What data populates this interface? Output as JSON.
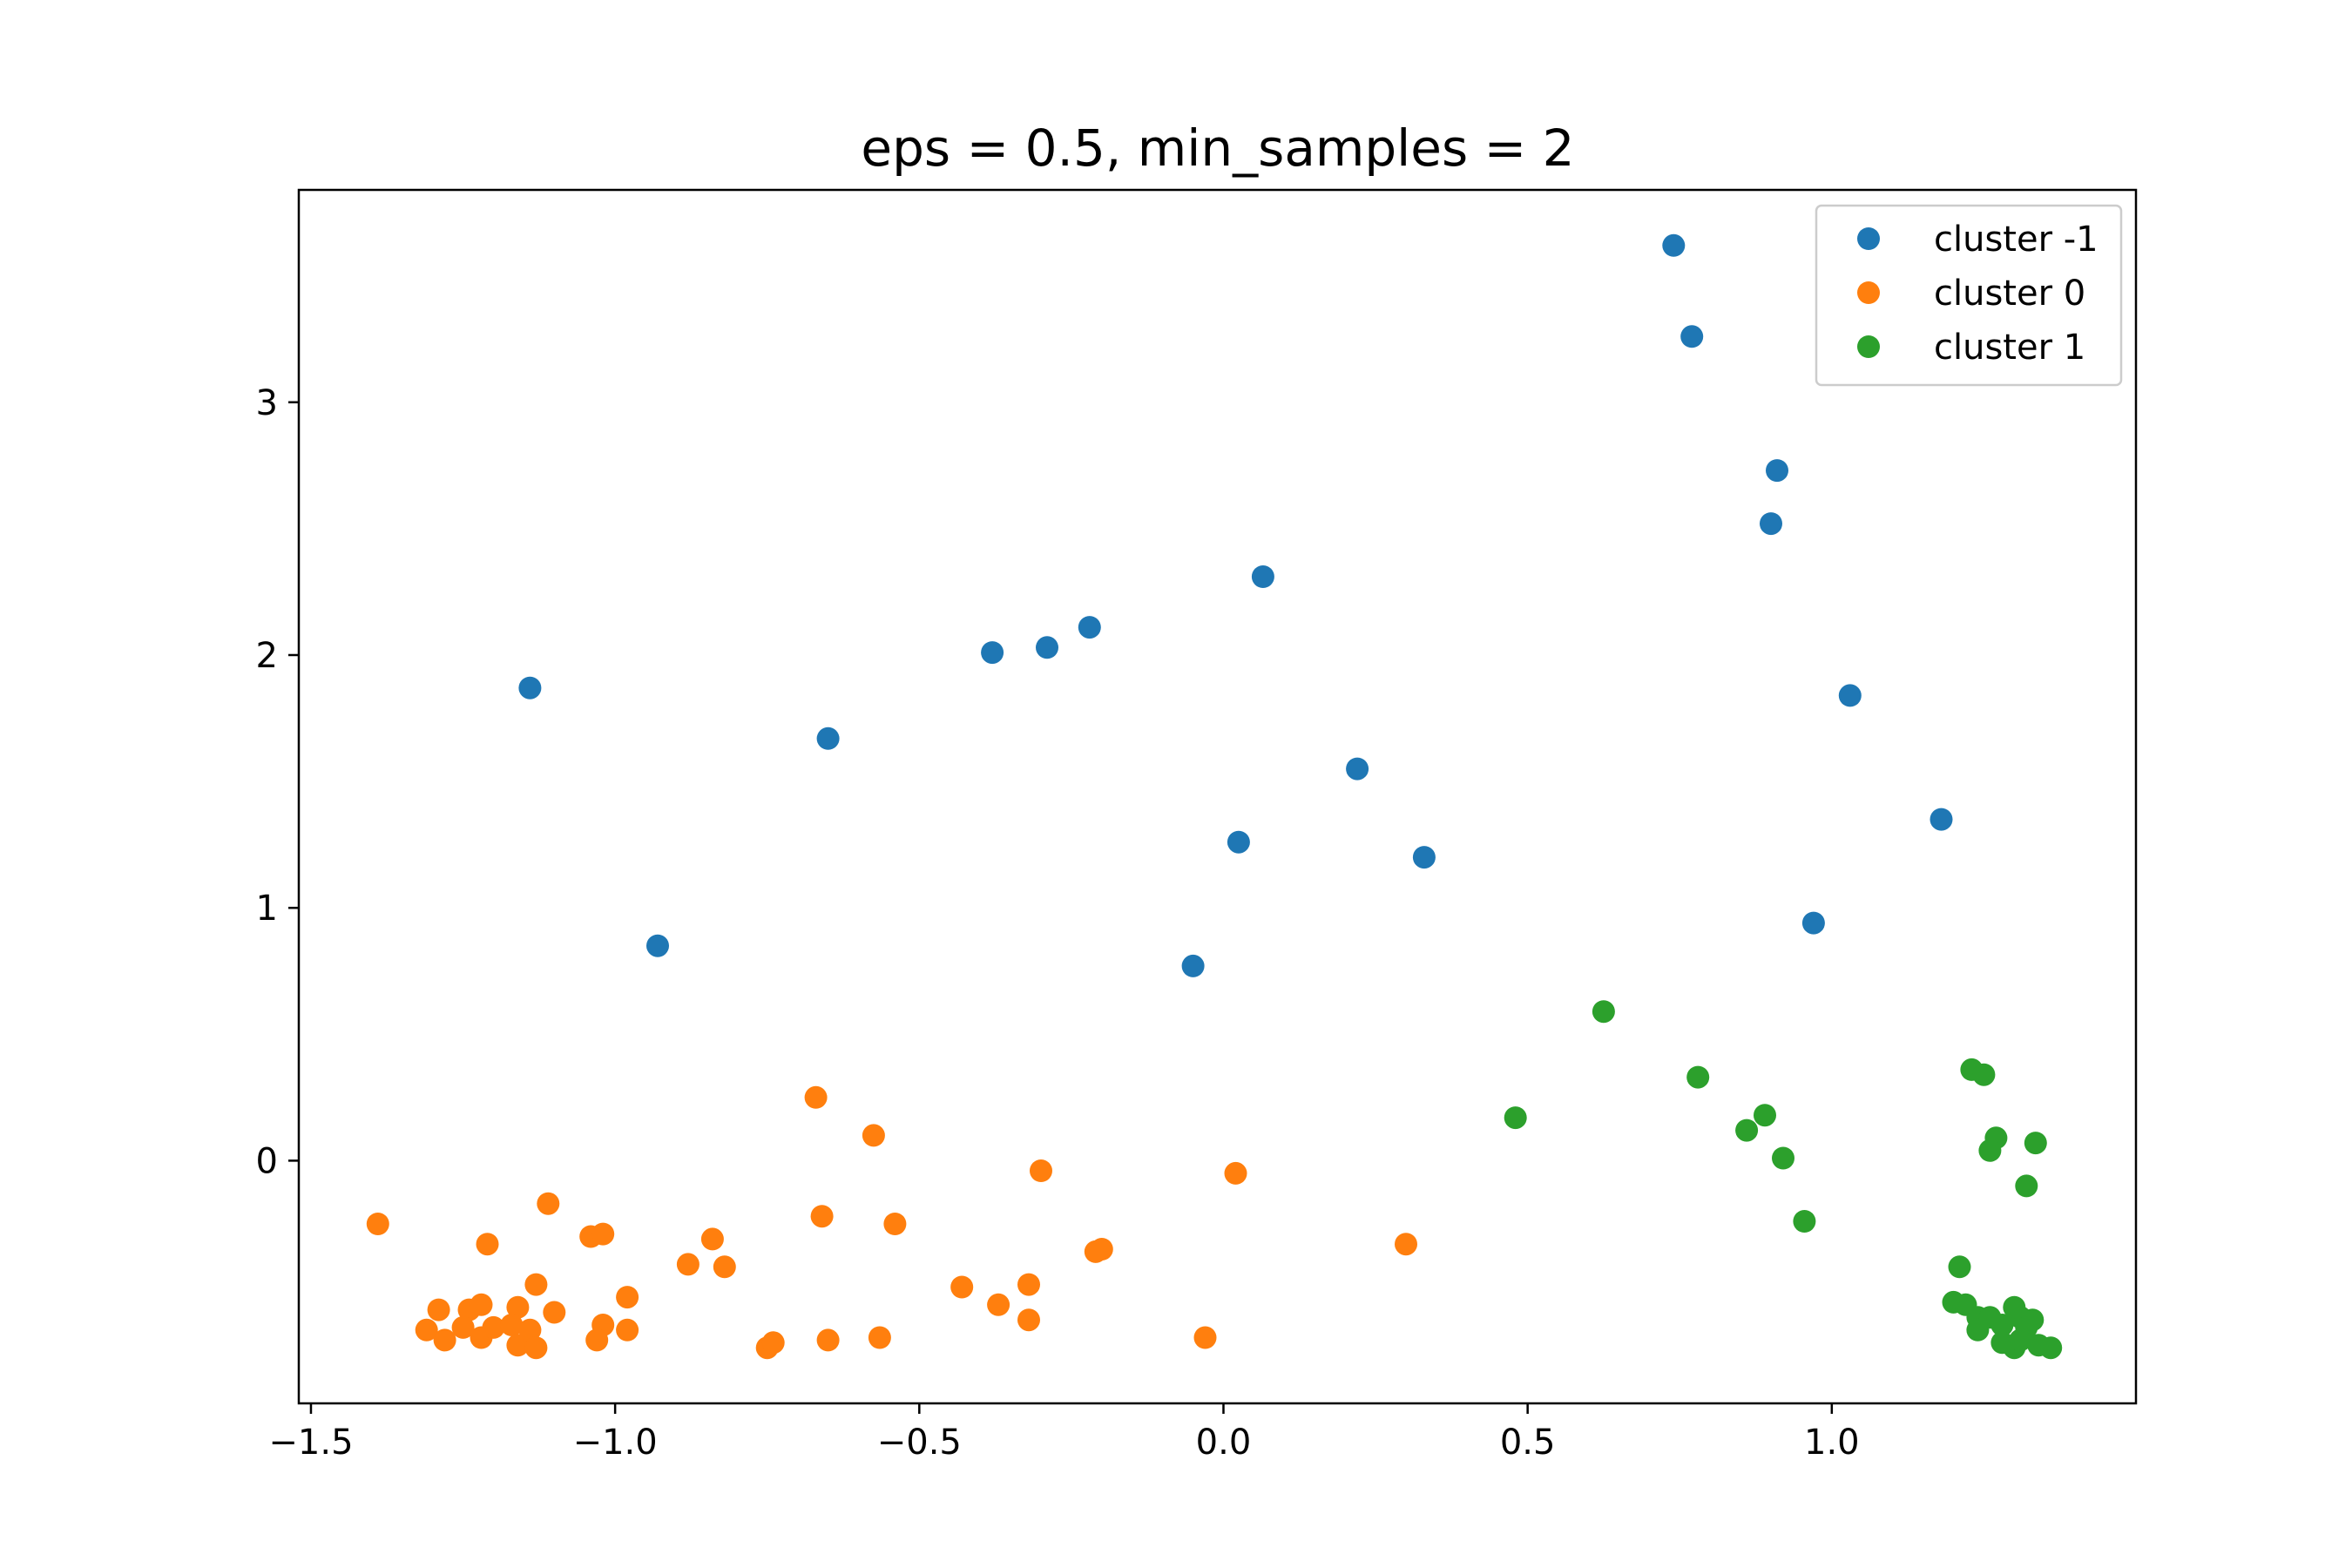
{
  "chart_data": {
    "type": "scatter",
    "title": "eps = 0.5, min_samples = 2",
    "xlabel": "",
    "ylabel": "",
    "xlim": [
      -1.52,
      1.5
    ],
    "ylim": [
      -0.96,
      3.84
    ],
    "xticks": [
      -1.5,
      -1.0,
      -0.5,
      0.0,
      0.5,
      1.0
    ],
    "xtick_labels": [
      "−1.5",
      "−1.0",
      "−0.5",
      "0.0",
      "0.5",
      "1.0"
    ],
    "yticks": [
      0,
      1,
      2,
      3
    ],
    "ytick_labels": [
      "0",
      "1",
      "2",
      "3"
    ],
    "grid": false,
    "legend_position": "top-right",
    "series": [
      {
        "name": "cluster -1",
        "color": "#1f77b4",
        "points": [
          [
            0.74,
            3.62
          ],
          [
            0.77,
            3.26
          ],
          [
            0.91,
            2.73
          ],
          [
            0.9,
            2.52
          ],
          [
            0.065,
            2.31
          ],
          [
            -0.22,
            2.11
          ],
          [
            -0.29,
            2.03
          ],
          [
            -0.38,
            2.01
          ],
          [
            -1.14,
            1.87
          ],
          [
            -0.65,
            1.67
          ],
          [
            1.03,
            1.84
          ],
          [
            0.22,
            1.55
          ],
          [
            0.025,
            1.26
          ],
          [
            0.33,
            1.2
          ],
          [
            1.18,
            1.35
          ],
          [
            0.97,
            0.94
          ],
          [
            -0.93,
            0.85
          ],
          [
            -0.05,
            0.77
          ]
        ]
      },
      {
        "name": "cluster 0",
        "color": "#ff7f0e",
        "points": [
          [
            -1.39,
            -0.25
          ],
          [
            -1.11,
            -0.17
          ],
          [
            -1.21,
            -0.33
          ],
          [
            -1.04,
            -0.3
          ],
          [
            -1.02,
            -0.29
          ],
          [
            -0.84,
            -0.31
          ],
          [
            -0.88,
            -0.41
          ],
          [
            -0.82,
            -0.42
          ],
          [
            -0.67,
            0.25
          ],
          [
            -0.575,
            0.1
          ],
          [
            -0.66,
            -0.22
          ],
          [
            -0.54,
            -0.25
          ],
          [
            -0.3,
            -0.04
          ],
          [
            0.02,
            -0.05
          ],
          [
            -0.2,
            -0.35
          ],
          [
            -0.21,
            -0.36
          ],
          [
            0.3,
            -0.33
          ],
          [
            -0.43,
            -0.5
          ],
          [
            -0.32,
            -0.49
          ],
          [
            -0.37,
            -0.57
          ],
          [
            -0.32,
            -0.63
          ],
          [
            -0.98,
            -0.54
          ],
          [
            -1.13,
            -0.49
          ],
          [
            -1.1,
            -0.6
          ],
          [
            -1.29,
            -0.59
          ],
          [
            -1.31,
            -0.67
          ],
          [
            -1.28,
            -0.71
          ],
          [
            -1.24,
            -0.59
          ],
          [
            -1.22,
            -0.57
          ],
          [
            -1.25,
            -0.66
          ],
          [
            -1.22,
            -0.7
          ],
          [
            -1.2,
            -0.66
          ],
          [
            -1.16,
            -0.58
          ],
          [
            -1.17,
            -0.65
          ],
          [
            -1.16,
            -0.73
          ],
          [
            -1.14,
            -0.67
          ],
          [
            -1.13,
            -0.74
          ],
          [
            -1.02,
            -0.65
          ],
          [
            -1.03,
            -0.71
          ],
          [
            -0.98,
            -0.67
          ],
          [
            -0.75,
            -0.74
          ],
          [
            -0.74,
            -0.72
          ],
          [
            -0.65,
            -0.71
          ],
          [
            -0.565,
            -0.7
          ],
          [
            -0.03,
            -0.7
          ]
        ]
      },
      {
        "name": "cluster 1",
        "color": "#2ca02c",
        "points": [
          [
            0.625,
            0.59
          ],
          [
            0.48,
            0.17
          ],
          [
            0.78,
            0.33
          ],
          [
            0.89,
            0.18
          ],
          [
            0.86,
            0.12
          ],
          [
            0.92,
            0.01
          ],
          [
            0.955,
            -0.24
          ],
          [
            1.23,
            0.36
          ],
          [
            1.25,
            0.34
          ],
          [
            1.27,
            0.09
          ],
          [
            1.26,
            0.04
          ],
          [
            1.335,
            0.07
          ],
          [
            1.32,
            -0.1
          ],
          [
            1.21,
            -0.42
          ],
          [
            1.2,
            -0.56
          ],
          [
            1.22,
            -0.57
          ],
          [
            1.24,
            -0.62
          ],
          [
            1.26,
            -0.62
          ],
          [
            1.24,
            -0.67
          ],
          [
            1.28,
            -0.65
          ],
          [
            1.28,
            -0.72
          ],
          [
            1.3,
            -0.58
          ],
          [
            1.31,
            -0.62
          ],
          [
            1.3,
            -0.74
          ],
          [
            1.32,
            -0.66
          ],
          [
            1.33,
            -0.63
          ],
          [
            1.34,
            -0.73
          ],
          [
            1.36,
            -0.74
          ],
          [
            1.31,
            -0.71
          ]
        ]
      }
    ]
  }
}
